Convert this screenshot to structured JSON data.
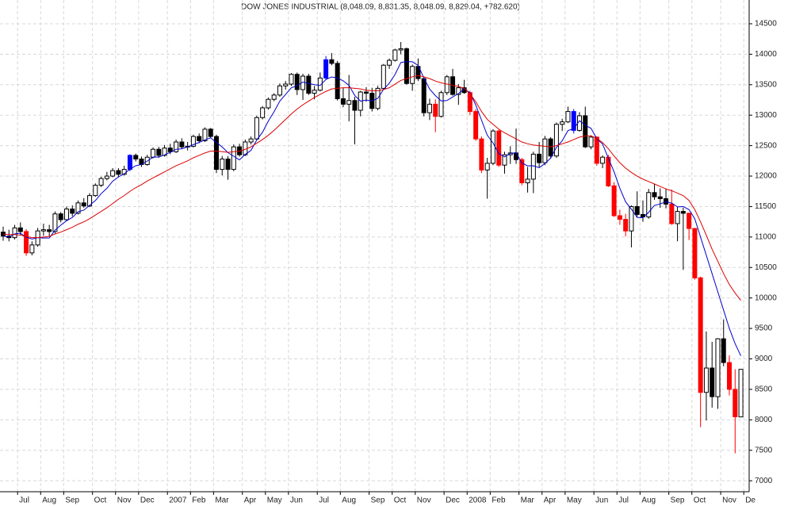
{
  "chart_data": {
    "type": "candlestick",
    "title": "DOW JONES INDUSTRIAL (8,048.09, 8,831.35, 8,048.09, 8,829.04, +782.620)",
    "categories": [
      null,
      null,
      null,
      "Jul",
      null,
      null,
      null,
      "Aug",
      null,
      null,
      null,
      "Sep",
      null,
      null,
      null,
      null,
      "Oct",
      null,
      null,
      null,
      "Nov",
      null,
      null,
      null,
      "Dec",
      null,
      null,
      null,
      null,
      "2007",
      null,
      null,
      null,
      "Feb",
      null,
      null,
      null,
      "Mar",
      null,
      null,
      null,
      null,
      "Apr",
      null,
      null,
      null,
      "May",
      null,
      null,
      null,
      "Jun",
      null,
      null,
      null,
      null,
      "Jul",
      null,
      null,
      null,
      "Aug",
      null,
      null,
      null,
      null,
      "Sep",
      null,
      null,
      null,
      "Oct",
      null,
      null,
      null,
      "Nov",
      null,
      null,
      null,
      null,
      "Dec",
      null,
      null,
      null,
      "2008",
      null,
      null,
      null,
      "Feb",
      null,
      null,
      null,
      null,
      "Mar",
      null,
      null,
      null,
      "Apr",
      null,
      null,
      null,
      "May",
      null,
      null,
      null,
      null,
      "Jun",
      null,
      null,
      null,
      "Jul",
      null,
      null,
      null,
      "Aug",
      null,
      null,
      null,
      null,
      "Sep",
      null,
      null,
      null,
      "Oct",
      null,
      null,
      null,
      null,
      "Nov",
      null,
      null,
      null,
      "De"
    ],
    "ohlc": [
      [
        11080,
        11170,
        10940,
        11015
      ],
      [
        11015,
        11120,
        10930,
        10990
      ],
      [
        10990,
        11200,
        10960,
        11150
      ],
      [
        11150,
        11240,
        11030,
        11090
      ],
      [
        11090,
        11130,
        10690,
        10740
      ],
      [
        10740,
        10930,
        10700,
        10870
      ],
      [
        10870,
        11150,
        10840,
        11100
      ],
      [
        11100,
        11220,
        11020,
        11120
      ],
      [
        11120,
        11200,
        11010,
        11090
      ],
      [
        11090,
        11420,
        11060,
        11380
      ],
      [
        11380,
        11410,
        11240,
        11285
      ],
      [
        11285,
        11500,
        11260,
        11460
      ],
      [
        11460,
        11520,
        11340,
        11390
      ],
      [
        11390,
        11600,
        11370,
        11560
      ],
      [
        11560,
        11640,
        11480,
        11510
      ],
      [
        11510,
        11720,
        11490,
        11680
      ],
      [
        11680,
        11880,
        11660,
        11850
      ],
      [
        11850,
        11990,
        11820,
        11960
      ],
      [
        11960,
        12070,
        11930,
        12000
      ],
      [
        12000,
        12130,
        11980,
        12090
      ],
      [
        12090,
        12130,
        11980,
        12030
      ],
      [
        12030,
        12170,
        12010,
        12110
      ],
      [
        12110,
        12360,
        12080,
        12340
      ],
      [
        12340,
        12370,
        12240,
        12280
      ],
      [
        12280,
        12320,
        12150,
        12190
      ],
      [
        12190,
        12350,
        12170,
        12310
      ],
      [
        12310,
        12470,
        12290,
        12440
      ],
      [
        12440,
        12480,
        12300,
        12340
      ],
      [
        12340,
        12510,
        12320,
        12460
      ],
      [
        12460,
        12530,
        12360,
        12400
      ],
      [
        12400,
        12600,
        12380,
        12560
      ],
      [
        12560,
        12620,
        12450,
        12480
      ],
      [
        12480,
        12560,
        12420,
        12490
      ],
      [
        12490,
        12680,
        12470,
        12650
      ],
      [
        12650,
        12700,
        12540,
        12580
      ],
      [
        12580,
        12800,
        12560,
        12770
      ],
      [
        12770,
        12790,
        12620,
        12650
      ],
      [
        12650,
        12680,
        12050,
        12110
      ],
      [
        12110,
        12330,
        12010,
        12280
      ],
      [
        12280,
        12330,
        11940,
        12110
      ],
      [
        12110,
        12520,
        12080,
        12480
      ],
      [
        12480,
        12530,
        12320,
        12350
      ],
      [
        12350,
        12600,
        12330,
        12560
      ],
      [
        12560,
        12650,
        12520,
        12610
      ],
      [
        12610,
        12990,
        12590,
        12960
      ],
      [
        12960,
        13150,
        12930,
        13120
      ],
      [
        13120,
        13290,
        13090,
        13260
      ],
      [
        13260,
        13360,
        13230,
        13330
      ],
      [
        13330,
        13520,
        13300,
        13480
      ],
      [
        13480,
        13560,
        13420,
        13510
      ],
      [
        13510,
        13690,
        13480,
        13670
      ],
      [
        13670,
        13700,
        13330,
        13420
      ],
      [
        13420,
        13680,
        13250,
        13640
      ],
      [
        13640,
        13680,
        13330,
        13360
      ],
      [
        13360,
        13480,
        13260,
        13410
      ],
      [
        13410,
        13700,
        13390,
        13610
      ],
      [
        13610,
        13970,
        13580,
        13910
      ],
      [
        13910,
        14020,
        13820,
        13850
      ],
      [
        13850,
        13890,
        13240,
        13270
      ],
      [
        13270,
        13450,
        13130,
        13180
      ],
      [
        13180,
        13660,
        12900,
        13240
      ],
      [
        13240,
        13300,
        12520,
        13080
      ],
      [
        13080,
        13400,
        12980,
        13380
      ],
      [
        13380,
        13460,
        13220,
        13360
      ],
      [
        13360,
        13450,
        13060,
        13110
      ],
      [
        13110,
        13480,
        13080,
        13440
      ],
      [
        13440,
        13840,
        13420,
        13820
      ],
      [
        13820,
        13930,
        13760,
        13900
      ],
      [
        13900,
        14090,
        13880,
        14070
      ],
      [
        14070,
        14200,
        14000,
        14090
      ],
      [
        14090,
        14110,
        13500,
        13520
      ],
      [
        13520,
        13830,
        13400,
        13800
      ],
      [
        13800,
        13930,
        13560,
        13600
      ],
      [
        13600,
        13620,
        12980,
        13040
      ],
      [
        13040,
        13270,
        12920,
        13180
      ],
      [
        13180,
        13260,
        12720,
        12980
      ],
      [
        12980,
        13400,
        12960,
        13370
      ],
      [
        13370,
        13660,
        13330,
        13630
      ],
      [
        13630,
        13760,
        13320,
        13340
      ],
      [
        13340,
        13510,
        13170,
        13450
      ],
      [
        13450,
        13580,
        13350,
        13370
      ],
      [
        13370,
        13400,
        13000,
        13060
      ],
      [
        13060,
        13100,
        12580,
        12610
      ],
      [
        12610,
        12650,
        12050,
        12100
      ],
      [
        12100,
        12300,
        11630,
        12210
      ],
      [
        12210,
        12770,
        12180,
        12740
      ],
      [
        12740,
        12760,
        12150,
        12180
      ],
      [
        12180,
        12400,
        12040,
        12350
      ],
      [
        12350,
        12490,
        12200,
        12380
      ],
      [
        12380,
        12780,
        12200,
        12270
      ],
      [
        12270,
        12300,
        11850,
        11890
      ],
      [
        11890,
        12150,
        11730,
        11950
      ],
      [
        11950,
        12400,
        11720,
        12360
      ],
      [
        12360,
        12560,
        12150,
        12220
      ],
      [
        12220,
        12660,
        12180,
        12610
      ],
      [
        12610,
        12640,
        12290,
        12330
      ],
      [
        12330,
        12880,
        12300,
        12850
      ],
      [
        12850,
        12940,
        12740,
        12890
      ],
      [
        12890,
        13140,
        12870,
        13060
      ],
      [
        13060,
        13100,
        12700,
        12750
      ],
      [
        12750,
        13050,
        12730,
        12990
      ],
      [
        12990,
        13140,
        12460,
        12480
      ],
      [
        12480,
        12670,
        12440,
        12640
      ],
      [
        12640,
        12650,
        12170,
        12210
      ],
      [
        12210,
        12340,
        12130,
        12310
      ],
      [
        12310,
        12350,
        11820,
        11840
      ],
      [
        11840,
        11900,
        11330,
        11350
      ],
      [
        11350,
        11450,
        11200,
        11290
      ],
      [
        11290,
        11380,
        11010,
        11100
      ],
      [
        11100,
        11520,
        10830,
        11500
      ],
      [
        11500,
        11750,
        11330,
        11370
      ],
      [
        11370,
        11600,
        11250,
        11330
      ],
      [
        11330,
        11790,
        11300,
        11730
      ],
      [
        11730,
        11870,
        11610,
        11660
      ],
      [
        11660,
        11800,
        11480,
        11630
      ],
      [
        11630,
        11790,
        11470,
        11540
      ],
      [
        11540,
        11780,
        11200,
        11220
      ],
      [
        11220,
        11500,
        10930,
        11420
      ],
      [
        11420,
        11480,
        10460,
        11390
      ],
      [
        11390,
        11400,
        10950,
        11140
      ],
      [
        11140,
        11150,
        10300,
        10330
      ],
      [
        10330,
        10350,
        7880,
        8450
      ],
      [
        8450,
        9450,
        7990,
        8850
      ],
      [
        8850,
        9280,
        8200,
        8380
      ],
      [
        8380,
        9340,
        8180,
        9330
      ],
      [
        9330,
        9650,
        8880,
        8940
      ],
      [
        8940,
        9060,
        8400,
        8500
      ],
      [
        8500,
        8830,
        7450,
        8050
      ],
      [
        8048.09,
        8831.35,
        8048.09,
        8829.04
      ],
      null
    ],
    "colors": [
      "#000000",
      "#000000",
      "#ffffff",
      "#000000",
      "#ff0000",
      "#ffffff",
      "#ffffff",
      "#ffffff",
      "#000000",
      "#ffffff",
      "#000000",
      "#ffffff",
      "#000000",
      "#ffffff",
      "#000000",
      "#ffffff",
      "#ffffff",
      "#ffffff",
      "#ffffff",
      "#ffffff",
      "#000000",
      "#ffffff",
      "#0000ff",
      "#000000",
      "#000000",
      "#ffffff",
      "#ffffff",
      "#000000",
      "#ffffff",
      "#000000",
      "#ffffff",
      "#000000",
      "#ffffff",
      "#ffffff",
      "#000000",
      "#ffffff",
      "#000000",
      "#000000",
      "#ffffff",
      "#000000",
      "#ffffff",
      "#000000",
      "#ffffff",
      "#ffffff",
      "#ffffff",
      "#ffffff",
      "#ffffff",
      "#ffffff",
      "#ffffff",
      "#ffffff",
      "#ffffff",
      "#000000",
      "#ffffff",
      "#000000",
      "#ffffff",
      "#ffffff",
      "#0000ff",
      "#000000",
      "#000000",
      "#000000",
      "#ffffff",
      "#000000",
      "#ffffff",
      "#000000",
      "#000000",
      "#ffffff",
      "#ffffff",
      "#ffffff",
      "#ffffff",
      "#ffffff",
      "#000000",
      "#ffffff",
      "#000000",
      "#000000",
      "#ffffff",
      "#ff0000",
      "#ffffff",
      "#ffffff",
      "#000000",
      "#ffffff",
      "#000000",
      "#ff0000",
      "#ff0000",
      "#ff0000",
      "#ffffff",
      "#ffffff",
      "#ff0000",
      "#ffffff",
      "#ffffff",
      "#000000",
      "#ff0000",
      "#ffffff",
      "#ffffff",
      "#000000",
      "#ffffff",
      "#000000",
      "#ffffff",
      "#ffffff",
      "#ffffff",
      "#0000ff",
      "#ffffff",
      "#000000",
      "#ffffff",
      "#ff0000",
      "#ffffff",
      "#ff0000",
      "#ff0000",
      "#ff0000",
      "#ff0000",
      "#ffffff",
      "#000000",
      "#000000",
      "#ffffff",
      "#000000",
      "#000000",
      "#000000",
      "#ff0000",
      "#ffffff",
      "#000000",
      "#ff0000",
      "#ff0000",
      "#ff0000",
      "#ffffff",
      "#000000",
      "#ffffff",
      "#000000",
      "#ff0000",
      "#ff0000",
      "#ffffff",
      null
    ],
    "series": [
      {
        "color": "#0000cc",
        "values": [
          11015,
          11003,
          11052,
          11061,
          10997,
          10968,
          10990,
          10984,
          10984,
          11112,
          11195,
          11267,
          11321,
          11415,
          11441,
          11520,
          11598,
          11712,
          11800,
          11916,
          11986,
          12038,
          12114,
          12170,
          12190,
          12246,
          12312,
          12312,
          12348,
          12390,
          12440,
          12448,
          12478,
          12516,
          12552,
          12594,
          12628,
          12552,
          12478,
          12384,
          12326,
          12266,
          12356,
          12422,
          12592,
          12720,
          12902,
          13056,
          13230,
          13340,
          13450,
          13482,
          13544,
          13520,
          13500,
          13488,
          13586,
          13628,
          13610,
          13564,
          13490,
          13324,
          13230,
          13248,
          13234,
          13276,
          13422,
          13526,
          13668,
          13864,
          13880,
          13876,
          13816,
          13610,
          13428,
          13320,
          13234,
          13240,
          13300,
          13354,
          13432,
          13370,
          13166,
          12918,
          12670,
          12544,
          12368,
          12316,
          12372,
          12384,
          12214,
          12168,
          12170,
          12138,
          12206,
          12296,
          12474,
          12580,
          12748,
          12776,
          12908,
          12834,
          12784,
          12614,
          12526,
          12296,
          12070,
          11800,
          11578,
          11458,
          11322,
          11318,
          11406,
          11518,
          11544,
          11578,
          11556,
          11494,
          11500,
          11450,
          11300,
          11000,
          10700,
          10400,
          10100,
          9800,
          9500,
          9250,
          9050,
          null
        ]
      },
      {
        "color": "#dd0000",
        "values": [
          11050,
          11040,
          11040,
          11030,
          11010,
          10990,
          10990,
          11000,
          11010,
          11050,
          11080,
          11120,
          11160,
          11210,
          11250,
          11300,
          11360,
          11420,
          11480,
          11550,
          11620,
          11680,
          11750,
          11810,
          11860,
          11920,
          11970,
          12020,
          12070,
          12120,
          12170,
          12210,
          12250,
          12300,
          12340,
          12380,
          12410,
          12410,
          12400,
          12390,
          12400,
          12410,
          12440,
          12480,
          12540,
          12600,
          12670,
          12750,
          12840,
          12930,
          13020,
          13100,
          13170,
          13230,
          13290,
          13340,
          13390,
          13430,
          13440,
          13450,
          13450,
          13440,
          13430,
          13410,
          13400,
          13400,
          13420,
          13450,
          13510,
          13570,
          13600,
          13630,
          13650,
          13630,
          13600,
          13560,
          13530,
          13510,
          13490,
          13470,
          13440,
          13350,
          13220,
          13060,
          12930,
          12850,
          12770,
          12710,
          12660,
          12610,
          12560,
          12530,
          12510,
          12500,
          12490,
          12480,
          12500,
          12530,
          12560,
          12600,
          12640,
          12660,
          12660,
          12620,
          12550,
          12450,
          12330,
          12220,
          12130,
          12060,
          12000,
          11950,
          11910,
          11870,
          11830,
          11790,
          11760,
          11720,
          11680,
          11600,
          11450,
          11250,
          11030,
          10800,
          10600,
          10400,
          10220,
          10080,
          9960,
          null
        ]
      }
    ],
    "ylim": [
      6820,
      14890
    ],
    "yticks": [
      7000,
      7500,
      8000,
      8500,
      9000,
      9500,
      10000,
      10500,
      11000,
      11500,
      12000,
      12500,
      13000,
      13500,
      14000,
      14500
    ],
    "grid": true
  }
}
